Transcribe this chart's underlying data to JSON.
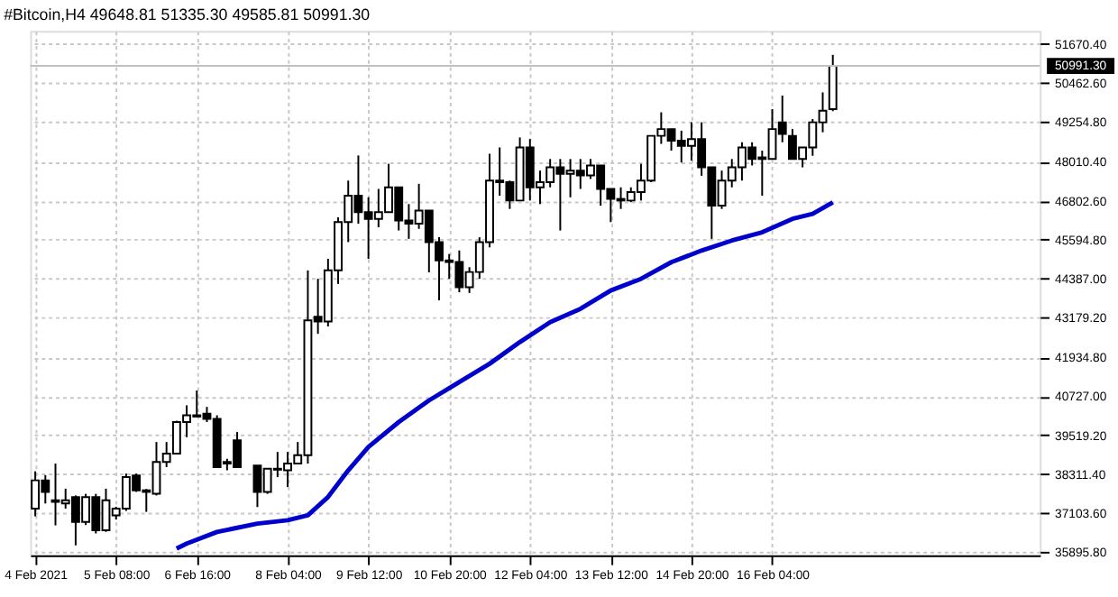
{
  "chart_data": {
    "type": "candlestick",
    "title": "#Bitcoin,H4  49648.81 51335.30 49585.81 50991.30",
    "x": [
      "2021-02-04T00:00",
      "2021-02-04T04:00",
      "2021-02-04T08:00",
      "2021-02-04T12:00",
      "2021-02-04T16:00",
      "2021-02-04T20:00",
      "2021-02-05T00:00",
      "2021-02-05T04:00",
      "2021-02-05T08:00",
      "2021-02-05T12:00",
      "2021-02-05T16:00",
      "2021-02-05T20:00",
      "2021-02-06T00:00",
      "2021-02-06T04:00",
      "2021-02-06T08:00",
      "2021-02-06T12:00",
      "2021-02-06T16:00",
      "2021-02-06T20:00",
      "2021-02-07T00:00",
      "2021-02-07T04:00",
      "2021-02-07T08:00",
      "2021-02-07T16:00",
      "2021-02-07T20:00",
      "2021-02-08T00:00",
      "2021-02-08T04:00",
      "2021-02-08T08:00",
      "2021-02-08T12:00",
      "2021-02-08T16:00",
      "2021-02-08T20:00",
      "2021-02-09T00:00",
      "2021-02-09T04:00",
      "2021-02-09T08:00",
      "2021-02-09T12:00",
      "2021-02-09T16:00",
      "2021-02-09T20:00",
      "2021-02-10T00:00",
      "2021-02-10T04:00",
      "2021-02-10T08:00",
      "2021-02-10T12:00",
      "2021-02-10T16:00",
      "2021-02-10T20:00",
      "2021-02-11T00:00",
      "2021-02-11T04:00",
      "2021-02-11T08:00",
      "2021-02-11T12:00",
      "2021-02-11T16:00",
      "2021-02-11T20:00",
      "2021-02-12T00:00",
      "2021-02-12T04:00",
      "2021-02-12T08:00",
      "2021-02-12T12:00",
      "2021-02-12T16:00",
      "2021-02-12T20:00",
      "2021-02-13T00:00",
      "2021-02-13T04:00",
      "2021-02-13T08:00",
      "2021-02-13T12:00",
      "2021-02-13T16:00",
      "2021-02-13T20:00",
      "2021-02-14T00:00",
      "2021-02-14T04:00",
      "2021-02-14T08:00",
      "2021-02-14T12:00",
      "2021-02-14T16:00",
      "2021-02-14T20:00",
      "2021-02-15T00:00",
      "2021-02-15T04:00",
      "2021-02-15T08:00",
      "2021-02-15T12:00",
      "2021-02-15T16:00",
      "2021-02-15T20:00",
      "2021-02-16T00:00",
      "2021-02-16T04:00",
      "2021-02-16T08:00",
      "2021-02-16T12:00",
      "2021-02-16T16:00",
      "2021-02-16T20:00",
      "2021-02-17T00:00",
      "2021-02-17T04:00"
    ],
    "series": [
      {
        "type": "candlestick",
        "color": "#000000",
        "ohlc": [
          [
            37240,
            38400,
            37000,
            38120
          ],
          [
            38120,
            38280,
            37400,
            37760
          ],
          [
            37500,
            38640,
            36720,
            37450
          ],
          [
            37400,
            37860,
            37240,
            37500
          ],
          [
            37600,
            37650,
            36100,
            36830
          ],
          [
            36830,
            37700,
            36730,
            37600
          ],
          [
            37600,
            37700,
            36470,
            36570
          ],
          [
            36570,
            37860,
            36520,
            37500
          ],
          [
            37030,
            37300,
            36900,
            37240
          ],
          [
            37240,
            38330,
            37170,
            38220
          ],
          [
            38270,
            38330,
            37760,
            37810
          ],
          [
            37810,
            37850,
            37140,
            37760
          ],
          [
            37700,
            39310,
            37650,
            38690
          ],
          [
            38690,
            39310,
            38530,
            38950
          ],
          [
            38950,
            39970,
            38950,
            39930
          ],
          [
            39930,
            40450,
            39460,
            40140
          ],
          [
            40140,
            40910,
            40090,
            40100
          ],
          [
            40190,
            40400,
            39930,
            40030
          ],
          [
            40030,
            40140,
            38530,
            38530
          ],
          [
            38690,
            38790,
            38430,
            38640
          ],
          [
            39360,
            39620,
            38530,
            38530
          ],
          [
            38580,
            38580,
            37290,
            37760
          ],
          [
            37760,
            38480,
            37700,
            38480
          ],
          [
            38450,
            39000,
            38220,
            38480
          ],
          [
            38430,
            39000,
            37910,
            38640
          ],
          [
            38640,
            39310,
            38640,
            38900
          ],
          [
            38900,
            44640,
            38640,
            43090
          ],
          [
            43200,
            44380,
            42670,
            43050
          ],
          [
            43050,
            45000,
            42900,
            44640
          ],
          [
            44640,
            46290,
            44220,
            46140
          ],
          [
            46140,
            47430,
            45520,
            46960
          ],
          [
            46960,
            48210,
            46090,
            46450
          ],
          [
            46450,
            46910,
            45000,
            46240
          ],
          [
            46240,
            47170,
            45980,
            46450
          ],
          [
            46450,
            47950,
            46450,
            47220
          ],
          [
            47220,
            47220,
            45880,
            46190
          ],
          [
            46190,
            46700,
            45620,
            46090
          ],
          [
            46090,
            47330,
            45930,
            46500
          ],
          [
            46500,
            46500,
            44580,
            45520
          ],
          [
            45520,
            45670,
            43710,
            44950
          ],
          [
            44950,
            45150,
            44380,
            44900
          ],
          [
            44900,
            45260,
            43960,
            44120
          ],
          [
            44120,
            44740,
            43940,
            44590
          ],
          [
            44590,
            45670,
            44380,
            45520
          ],
          [
            45520,
            48260,
            45360,
            47430
          ],
          [
            47430,
            48460,
            46960,
            47380
          ],
          [
            47380,
            47430,
            46550,
            46810
          ],
          [
            46810,
            48770,
            46810,
            48460
          ],
          [
            48460,
            48720,
            46810,
            47220
          ],
          [
            47220,
            47740,
            46700,
            47380
          ],
          [
            47380,
            48100,
            47220,
            47840
          ],
          [
            47840,
            48100,
            45880,
            47640
          ],
          [
            47640,
            48100,
            46910,
            47740
          ],
          [
            47740,
            48100,
            47170,
            47590
          ],
          [
            47590,
            48100,
            47480,
            47900
          ],
          [
            47900,
            47900,
            46650,
            47170
          ],
          [
            47170,
            47170,
            46140,
            46860
          ],
          [
            46860,
            47220,
            46550,
            46810
          ],
          [
            46810,
            47220,
            46760,
            47070
          ],
          [
            47070,
            47950,
            46810,
            47430
          ],
          [
            47430,
            48820,
            47380,
            48820
          ],
          [
            48820,
            49550,
            48570,
            49030
          ],
          [
            49030,
            49030,
            48360,
            48670
          ],
          [
            48670,
            48980,
            47990,
            48510
          ],
          [
            48510,
            49240,
            48050,
            48720
          ],
          [
            48720,
            49240,
            47580,
            47840
          ],
          [
            47840,
            47840,
            45620,
            46650
          ],
          [
            46650,
            47740,
            46550,
            47430
          ],
          [
            47430,
            48100,
            47220,
            47840
          ],
          [
            47840,
            48620,
            47430,
            48460
          ],
          [
            48460,
            48620,
            47900,
            48100
          ],
          [
            48150,
            48360,
            46960,
            48100
          ],
          [
            48100,
            49650,
            48100,
            49030
          ],
          [
            49240,
            50070,
            48620,
            48880
          ],
          [
            48820,
            49030,
            48100,
            48100
          ],
          [
            48100,
            48460,
            47840,
            48460
          ],
          [
            48460,
            49340,
            48200,
            49240
          ],
          [
            49240,
            50170,
            48930,
            49600
          ],
          [
            49648.81,
            51335.3,
            49585.81,
            50991.3
          ]
        ]
      },
      {
        "type": "line",
        "color": "#0000cd",
        "x": [
          "2021-02-06T08:00",
          "2021-02-06T12:00",
          "2021-02-07T00:00",
          "2021-02-07T16:00",
          "2021-02-08T04:00",
          "2021-02-08T12:00",
          "2021-02-08T20:00",
          "2021-02-09T04:00",
          "2021-02-09T12:00",
          "2021-02-10T00:00",
          "2021-02-10T12:00",
          "2021-02-11T00:00",
          "2021-02-11T12:00",
          "2021-02-12T00:00",
          "2021-02-12T12:00",
          "2021-02-13T00:00",
          "2021-02-13T12:00",
          "2021-02-14T00:00",
          "2021-02-14T12:00",
          "2021-02-15T00:00",
          "2021-02-15T12:00",
          "2021-02-16T00:00",
          "2021-02-16T12:00",
          "2021-02-16T20:00",
          "2021-02-17T04:00"
        ],
        "values": [
          36000,
          36154,
          36516,
          36775,
          36879,
          37034,
          37603,
          38430,
          39154,
          39930,
          40602,
          41171,
          41740,
          42413,
          43033,
          43447,
          44016,
          44378,
          44895,
          45257,
          45568,
          45826,
          46240,
          46395,
          46757
        ]
      }
    ],
    "xlim": [
      "2021-02-03T22:00",
      "2021-02-20T14:00"
    ],
    "xticks": [
      {
        "value": "2021-02-04T00:00",
        "label": "4 Feb 2021"
      },
      {
        "value": "2021-02-05T08:00",
        "label": "5 Feb 08:00"
      },
      {
        "value": "2021-02-06T16:00",
        "label": "6 Feb 16:00"
      },
      {
        "value": "2021-02-08T04:00",
        "label": "8 Feb 04:00"
      },
      {
        "value": "2021-02-09T12:00",
        "label": "9 Feb 12:00"
      },
      {
        "value": "2021-02-10T20:00",
        "label": "10 Feb 20:00"
      },
      {
        "value": "2021-02-12T04:00",
        "label": "12 Feb 04:00"
      },
      {
        "value": "2021-02-13T12:00",
        "label": "13 Feb 12:00"
      },
      {
        "value": "2021-02-14T20:00",
        "label": "14 Feb 20:00"
      },
      {
        "value": "2021-02-16T04:00",
        "label": "16 Feb 04:00"
      }
    ],
    "ylim": [
      35790,
      52080
    ],
    "yticks": [
      {
        "value": 35895.8,
        "label": "35895.80"
      },
      {
        "value": 37103.6,
        "label": "37103.60"
      },
      {
        "value": 38311.4,
        "label": "38311.40"
      },
      {
        "value": 39519.2,
        "label": "39519.20"
      },
      {
        "value": 40727,
        "label": "40727.00"
      },
      {
        "value": 41934.8,
        "label": "41934.80"
      },
      {
        "value": 43179.2,
        "label": "43179.20"
      },
      {
        "value": 44387,
        "label": "44387.00"
      },
      {
        "value": 45594.8,
        "label": "45594.80"
      },
      {
        "value": 46802.6,
        "label": "46802.60"
      },
      {
        "value": 48010.4,
        "label": "48010.40"
      },
      {
        "value": 49254.8,
        "label": "49254.80"
      },
      {
        "value": 50462.6,
        "label": "50462.60"
      },
      {
        "value": 51670.4,
        "label": "51670.40"
      }
    ],
    "ref_lines": [
      {
        "axis": "y",
        "value": 50991.3,
        "label": "50991.30",
        "color": "#c0c0c0"
      }
    ],
    "grid": true
  }
}
